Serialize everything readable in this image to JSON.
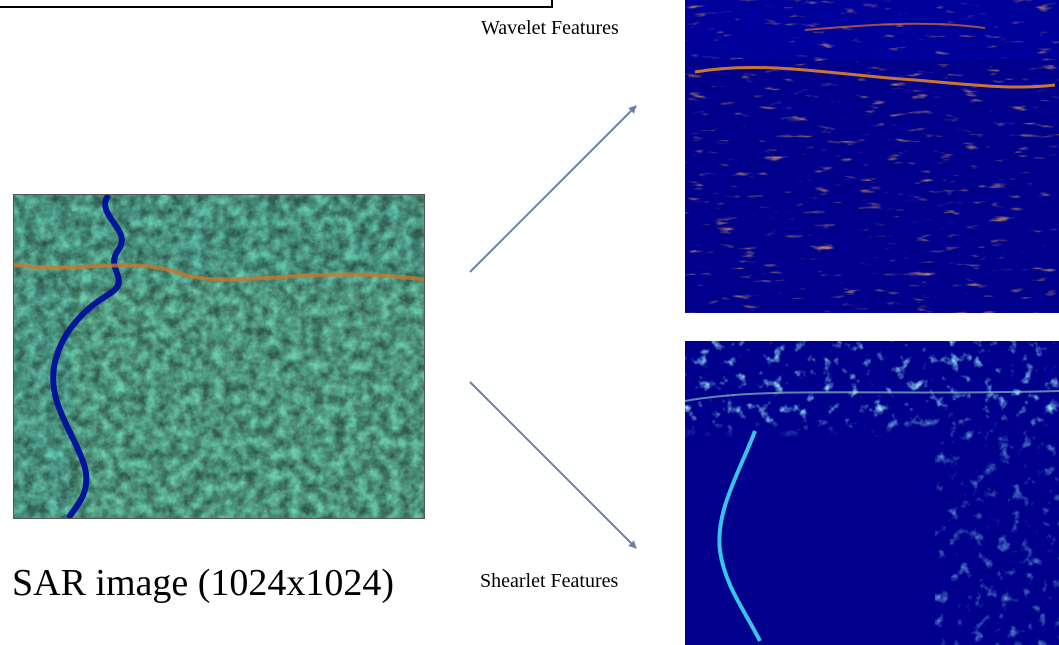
{
  "labels": {
    "wavelet": "Wavelet Features",
    "shearlet": "Shearlet Features",
    "sar": "SAR image (1024x1024)"
  },
  "colors": {
    "arrow": "#6b7fa6",
    "deep_blue": "#00008f",
    "cyan": "#37c8e6",
    "green": "#7fd99a",
    "orange": "#e38a2e"
  }
}
